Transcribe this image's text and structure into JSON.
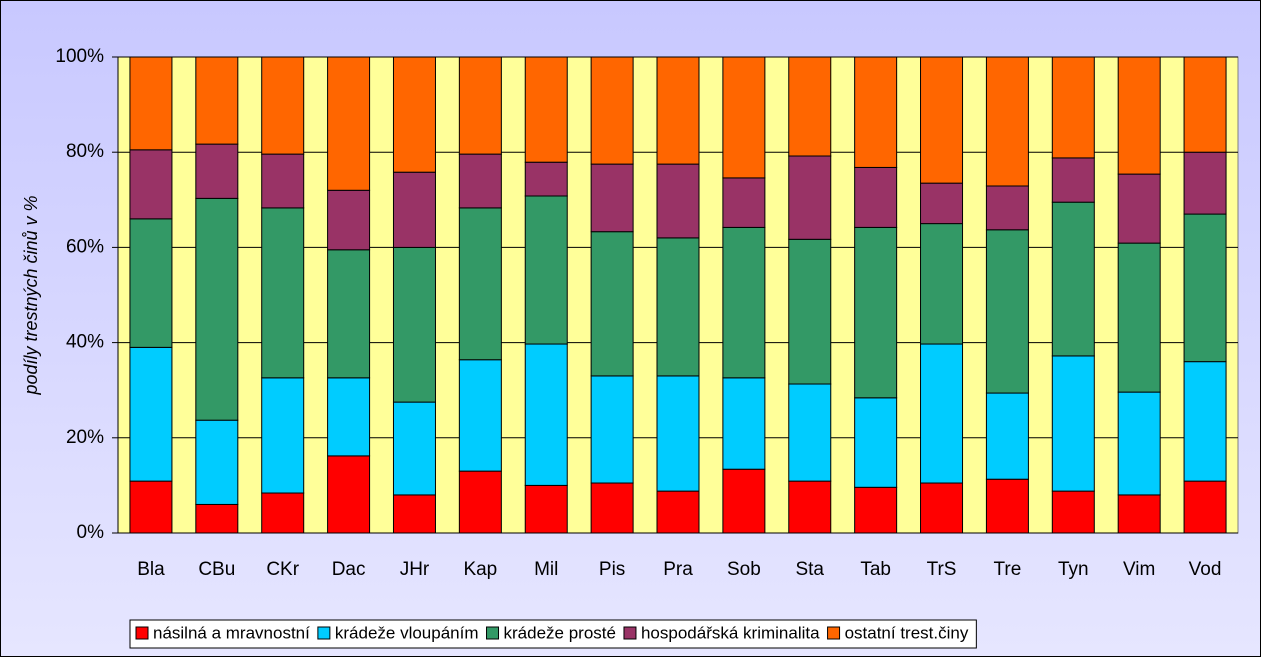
{
  "chart_data": {
    "type": "stacked_bar_100",
    "y_label": "podíly trestných činů v %",
    "categories": [
      "Bla",
      "CBu",
      "CKr",
      "Dac",
      "JHr",
      "Kap",
      "Mil",
      "Pis",
      "Pra",
      "Sob",
      "Sta",
      "Tab",
      "TrS",
      "Tre",
      "Tyn",
      "Vim",
      "Vod"
    ],
    "series": [
      {
        "name": "násilná a mravnostní",
        "color": "#ff0000",
        "values": [
          10.9,
          6,
          8.4,
          16.2,
          8,
          13,
          10,
          10.5,
          8.8,
          13.4,
          10.9,
          9.6,
          10.5,
          11.3,
          8.8,
          8,
          10.9
        ]
      },
      {
        "name": "krádeže vloupáním",
        "color": "#00ccff",
        "values": [
          28.1,
          17.7,
          24.2,
          16.4,
          19.5,
          23.4,
          29.7,
          22.5,
          24.2,
          19.2,
          20.4,
          18.8,
          29.2,
          18.1,
          28.4,
          21.6,
          25.1
        ]
      },
      {
        "name": "krádeže prosté",
        "color": "#339966",
        "values": [
          27,
          46.6,
          35.7,
          26.9,
          32.5,
          31.9,
          31.1,
          30.3,
          29,
          31.6,
          30.4,
          35.8,
          25.3,
          34.3,
          32.3,
          31.3,
          31
        ]
      },
      {
        "name": "hospodářská kriminalita",
        "color": "#993366",
        "values": [
          14.5,
          11.4,
          11.3,
          12.5,
          15.8,
          11.3,
          7.1,
          14.2,
          15.5,
          10.4,
          17.5,
          12.6,
          8.5,
          9.2,
          9.3,
          14.5,
          13
        ]
      },
      {
        "name": "ostatní trest.činy",
        "color": "#ff6600",
        "values": [
          19.5,
          18.3,
          20.4,
          28,
          24.2,
          20.4,
          22.1,
          22.5,
          22.5,
          25.4,
          20.8,
          23.2,
          26.5,
          27.1,
          21.2,
          24.6,
          20
        ]
      }
    ],
    "ylim": [
      0,
      100
    ],
    "yticks": [
      {
        "value": 0,
        "label": "0%"
      },
      {
        "value": 20,
        "label": "20%"
      },
      {
        "value": 40,
        "label": "40%"
      },
      {
        "value": 60,
        "label": "60%"
      },
      {
        "value": 80,
        "label": "80%"
      },
      {
        "value": 100,
        "label": "100%"
      }
    ],
    "grid": true,
    "legend": "bottom",
    "plot_color": "#ffff99"
  }
}
